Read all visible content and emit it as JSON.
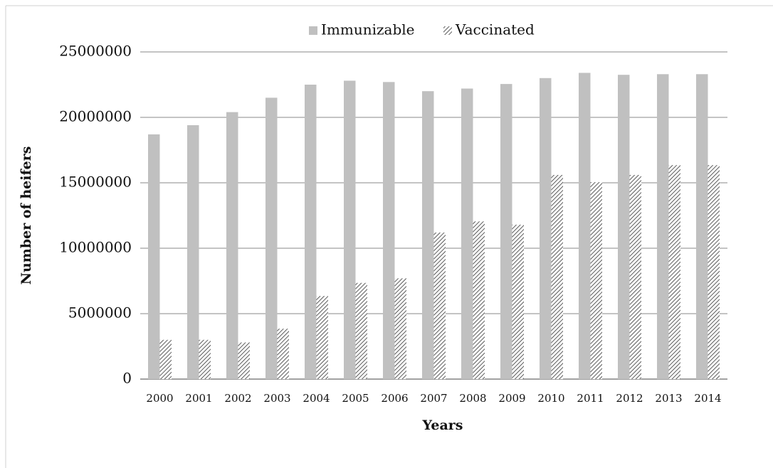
{
  "chart_data": {
    "type": "bar",
    "y_label": "Number of heifers",
    "x_label": "Years",
    "categories": [
      "2000",
      "2001",
      "2002",
      "2003",
      "2004",
      "2005",
      "2006",
      "2007",
      "2008",
      "2009",
      "2010",
      "2011",
      "2012",
      "2013",
      "2014"
    ],
    "series": [
      {
        "name": "Immunizable",
        "color": "#c0c0c0",
        "values": [
          18700000,
          19400000,
          20400000,
          21500000,
          22500000,
          22800000,
          22700000,
          22000000,
          22200000,
          22550000,
          23000000,
          23400000,
          23250000,
          23300000,
          23300000
        ]
      },
      {
        "name": "Vaccinated",
        "color": "#333333",
        "hatch": true,
        "values": [
          3000000,
          3000000,
          2800000,
          3850000,
          6350000,
          7350000,
          7700000,
          11200000,
          12050000,
          11800000,
          15600000,
          15050000,
          15600000,
          16350000,
          16350000
        ]
      }
    ],
    "ylim": [
      0,
      25000000
    ],
    "yticks": [
      0,
      5000000,
      10000000,
      15000000,
      20000000,
      25000000
    ],
    "grid": true,
    "legend": "top"
  }
}
